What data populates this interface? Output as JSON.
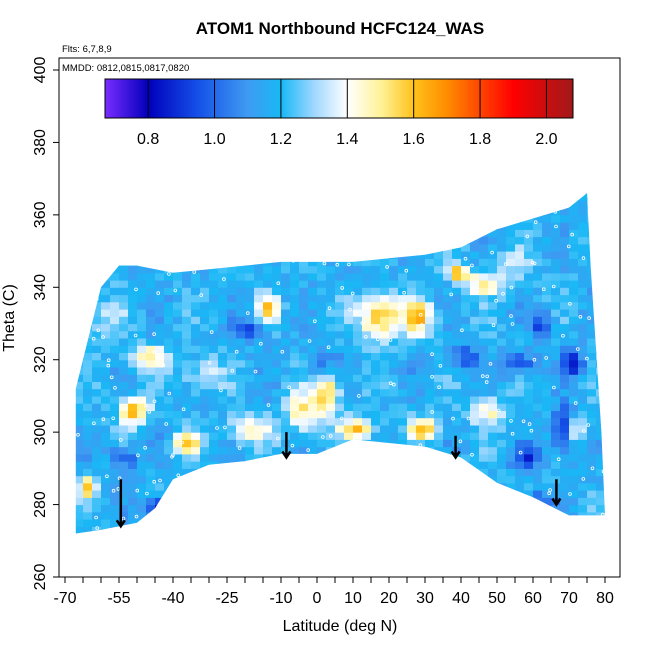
{
  "chart_data": {
    "type": "heatmap",
    "title": "ATOM1 Northbound HCFC124_WAS",
    "flights_note": "Flts: 6,7,8,9",
    "dates_note": "MMDD: 0812,0815,0817,0820",
    "xlabel": "Latitude (deg N)",
    "ylabel": "Theta (C)",
    "xlim": [
      -70,
      80
    ],
    "ylim": [
      260,
      400
    ],
    "x_ticks": [
      -70,
      -55,
      -40,
      -25,
      -10,
      0,
      10,
      20,
      30,
      40,
      50,
      60,
      70,
      80
    ],
    "y_ticks": [
      260,
      280,
      300,
      320,
      340,
      360,
      380,
      400
    ],
    "colorbar": {
      "range": [
        0.67,
        2.08
      ],
      "ticks": [
        0.8,
        1.0,
        1.2,
        1.4,
        1.6,
        1.8,
        2.0
      ],
      "tick_labels": [
        "0.8",
        "1.0",
        "1.2",
        "1.4",
        "1.6",
        "1.8",
        "2.0"
      ],
      "stops": [
        {
          "v": 0.67,
          "color": "#7a2cff"
        },
        {
          "v": 0.8,
          "color": "#0000bb"
        },
        {
          "v": 0.95,
          "color": "#1550e8"
        },
        {
          "v": 1.1,
          "color": "#3f9bf2"
        },
        {
          "v": 1.2,
          "color": "#18b8f5"
        },
        {
          "v": 1.3,
          "color": "#9fd7ff"
        },
        {
          "v": 1.4,
          "color": "#ffffff"
        },
        {
          "v": 1.5,
          "color": "#fff39a"
        },
        {
          "v": 1.6,
          "color": "#ffc21a"
        },
        {
          "v": 1.7,
          "color": "#ff8c00"
        },
        {
          "v": 1.8,
          "color": "#ff4600"
        },
        {
          "v": 1.9,
          "color": "#ff0000"
        },
        {
          "v": 2.08,
          "color": "#a0191a"
        }
      ]
    },
    "domain_boundary": {
      "top": [
        [
          -67,
          312
        ],
        [
          -60,
          340
        ],
        [
          -55,
          346
        ],
        [
          -50,
          346
        ],
        [
          -40,
          344
        ],
        [
          -30,
          345
        ],
        [
          -20,
          346
        ],
        [
          -10,
          347
        ],
        [
          0,
          347
        ],
        [
          10,
          347
        ],
        [
          20,
          348
        ],
        [
          30,
          349
        ],
        [
          40,
          351
        ],
        [
          50,
          356
        ],
        [
          60,
          359
        ],
        [
          70,
          362
        ],
        [
          75,
          366
        ],
        [
          76,
          346
        ],
        [
          79,
          300
        ],
        [
          80,
          277
        ]
      ],
      "bottom": [
        [
          80,
          277
        ],
        [
          70,
          277
        ],
        [
          60,
          282
        ],
        [
          50,
          286
        ],
        [
          40,
          293
        ],
        [
          30,
          296
        ],
        [
          20,
          297
        ],
        [
          10,
          298
        ],
        [
          0,
          294
        ],
        [
          -10,
          294
        ],
        [
          -20,
          292
        ],
        [
          -30,
          291
        ],
        [
          -40,
          287
        ],
        [
          -45,
          279
        ],
        [
          -50,
          275
        ],
        [
          -60,
          273
        ],
        [
          -67,
          272
        ]
      ]
    },
    "blobs": [
      {
        "x": -52,
        "y": 305,
        "v": 1.62,
        "sx": 4,
        "sy": 4
      },
      {
        "x": -48,
        "y": 320,
        "v": 1.52,
        "sx": 5,
        "sy": 3
      },
      {
        "x": -65,
        "y": 284,
        "v": 1.6,
        "sx": 3,
        "sy": 3
      },
      {
        "x": -37,
        "y": 296,
        "v": 1.58,
        "sx": 4,
        "sy": 3
      },
      {
        "x": -15,
        "y": 333,
        "v": 1.55,
        "sx": 3,
        "sy": 4
      },
      {
        "x": -5,
        "y": 305,
        "v": 1.5,
        "sx": 5,
        "sy": 6
      },
      {
        "x": 2,
        "y": 310,
        "v": 1.58,
        "sx": 3,
        "sy": 6
      },
      {
        "x": 10,
        "y": 300,
        "v": 1.6,
        "sx": 5,
        "sy": 3
      },
      {
        "x": 16,
        "y": 331,
        "v": 1.62,
        "sx": 6,
        "sy": 6
      },
      {
        "x": 27,
        "y": 331,
        "v": 1.58,
        "sx": 4,
        "sy": 5
      },
      {
        "x": 28,
        "y": 300,
        "v": 1.62,
        "sx": 4,
        "sy": 3
      },
      {
        "x": 38,
        "y": 343,
        "v": 1.7,
        "sx": 3,
        "sy": 2
      },
      {
        "x": 46,
        "y": 305,
        "v": 1.45,
        "sx": 5,
        "sy": 4
      },
      {
        "x": 45,
        "y": 340,
        "v": 1.5,
        "sx": 5,
        "sy": 3
      },
      {
        "x": -20,
        "y": 300,
        "v": 1.45,
        "sx": 6,
        "sy": 4
      },
      {
        "x": 71,
        "y": 300,
        "v": 1.58,
        "sx": 2,
        "sy": 3
      },
      {
        "x": -45,
        "y": 278,
        "v": 0.78,
        "sx": 4,
        "sy": 3
      },
      {
        "x": -20,
        "y": 327,
        "v": 0.95,
        "sx": 4,
        "sy": 3
      },
      {
        "x": 0,
        "y": 318,
        "v": 1.0,
        "sx": 4,
        "sy": 4
      },
      {
        "x": 40,
        "y": 320,
        "v": 0.98,
        "sx": 4,
        "sy": 4
      },
      {
        "x": 55,
        "y": 318,
        "v": 0.92,
        "sx": 5,
        "sy": 3
      },
      {
        "x": 61,
        "y": 329,
        "v": 0.9,
        "sx": 3,
        "sy": 3
      },
      {
        "x": 67,
        "y": 300,
        "v": 0.85,
        "sx": 3,
        "sy": 6
      },
      {
        "x": 70,
        "y": 318,
        "v": 0.88,
        "sx": 3,
        "sy": 4
      },
      {
        "x": 57,
        "y": 292,
        "v": 0.9,
        "sx": 4,
        "sy": 3
      },
      {
        "x": -55,
        "y": 292,
        "v": 0.92,
        "sx": 4,
        "sy": 3
      },
      {
        "x": 60,
        "y": 280,
        "v": 1.0,
        "sx": 5,
        "sy": 3
      },
      {
        "x": -60,
        "y": 330,
        "v": 1.3,
        "sx": 6,
        "sy": 6
      },
      {
        "x": -33,
        "y": 315,
        "v": 1.35,
        "sx": 6,
        "sy": 5
      },
      {
        "x": 53,
        "y": 345,
        "v": 1.3,
        "sx": 6,
        "sy": 5
      }
    ],
    "arrows": [
      {
        "lat": -54.5,
        "theta_top": 287,
        "theta_bottom": 274
      },
      {
        "lat": -8.5,
        "theta_top": 300,
        "theta_bottom": 293
      },
      {
        "lat": 38.5,
        "theta_top": 299,
        "theta_bottom": 293
      },
      {
        "lat": 66.5,
        "theta_top": 287,
        "theta_bottom": 280
      }
    ]
  }
}
